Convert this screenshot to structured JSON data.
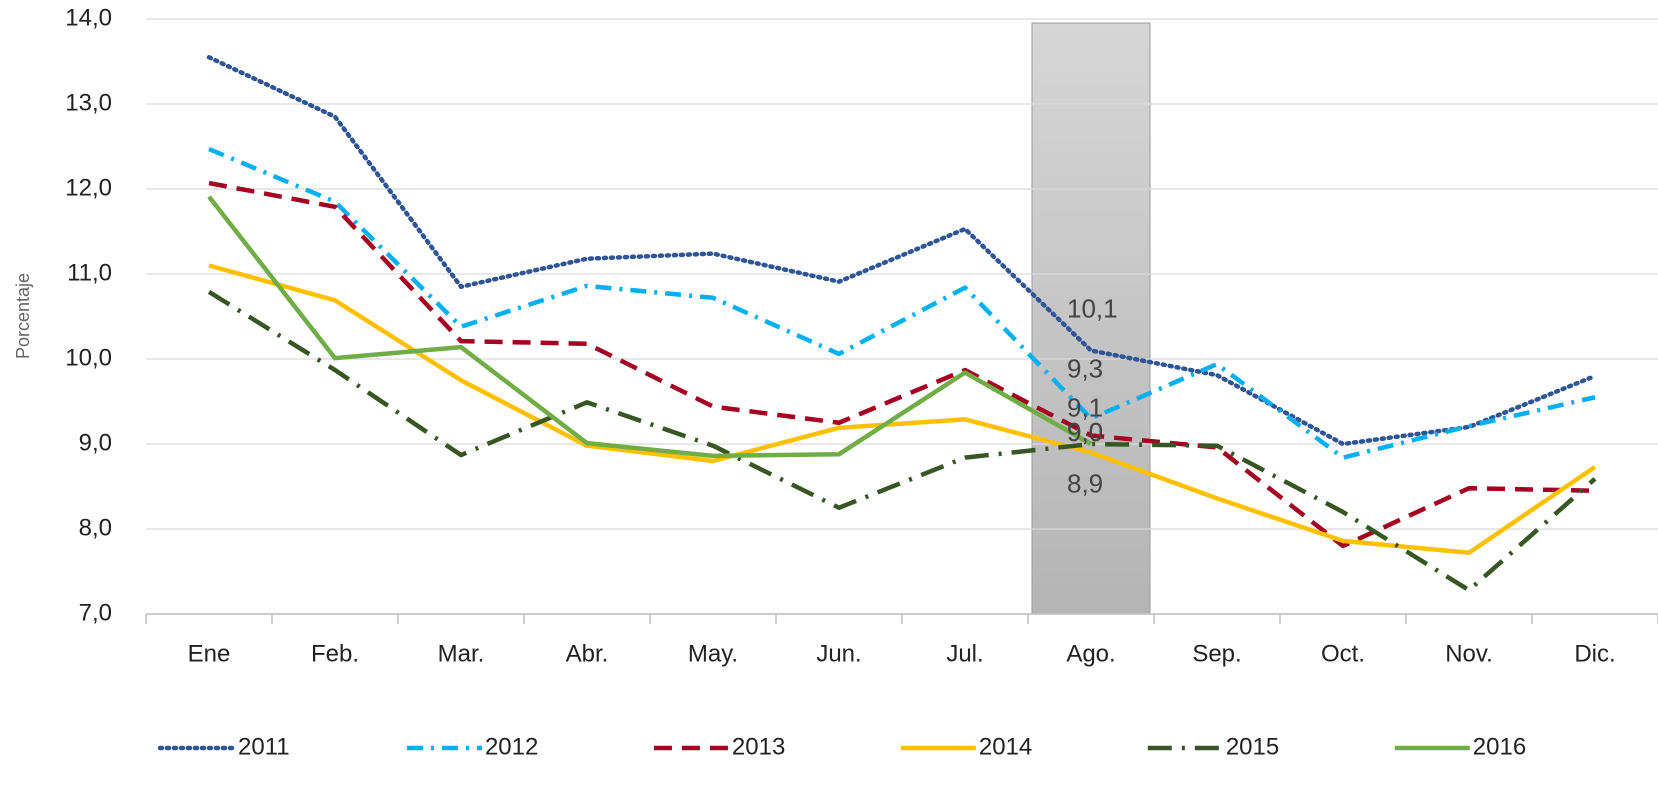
{
  "chart_data": {
    "type": "line",
    "y_label": "Porcentaje",
    "categories": [
      "Ene",
      "Feb.",
      "Mar.",
      "Abr.",
      "May.",
      "Jun.",
      "Jul.",
      "Ago.",
      "Sep.",
      "Oct.",
      "Nov.",
      "Dic."
    ],
    "ylim": [
      7,
      14
    ],
    "yticks": [
      {
        "value": 7,
        "label": "7,0"
      },
      {
        "value": 8,
        "label": "8,0"
      },
      {
        "value": 9,
        "label": "9,0"
      },
      {
        "value": 10,
        "label": "10,0"
      },
      {
        "value": 11,
        "label": "11,0"
      },
      {
        "value": 12,
        "label": "12,0"
      },
      {
        "value": 13,
        "label": "13,0"
      },
      {
        "value": 14,
        "label": "14,0"
      }
    ],
    "grid": true,
    "legend": "bottom",
    "series": [
      {
        "name": "2011",
        "color": "#2F5597",
        "style": "dotted",
        "values": [
          13.55,
          12.85,
          10.85,
          11.18,
          11.24,
          10.91,
          11.53,
          10.1,
          9.81,
          9.0,
          9.2,
          9.8
        ],
        "value_labels": [
          null,
          null,
          null,
          null,
          null,
          null,
          null,
          "10,1",
          null,
          null,
          null,
          null
        ]
      },
      {
        "name": "2012",
        "color": "#00B0F0",
        "style": "dashdot",
        "values": [
          12.47,
          11.85,
          10.38,
          10.86,
          10.72,
          10.06,
          10.84,
          9.3,
          9.94,
          8.84,
          9.21,
          9.55
        ],
        "value_labels": [
          null,
          null,
          null,
          null,
          null,
          null,
          null,
          "9,3",
          null,
          null,
          null,
          null
        ]
      },
      {
        "name": "2013",
        "color": "#A50021",
        "style": "dashed",
        "values": [
          12.07,
          11.79,
          10.21,
          10.18,
          9.44,
          9.25,
          9.87,
          9.1,
          8.96,
          7.8,
          8.48,
          8.45
        ],
        "value_labels": [
          null,
          null,
          null,
          null,
          null,
          null,
          null,
          "9,1",
          null,
          null,
          null,
          null
        ]
      },
      {
        "name": "2014",
        "color": "#FFC000",
        "style": "solid",
        "values": [
          11.1,
          10.69,
          9.75,
          8.98,
          8.8,
          9.19,
          9.29,
          8.9,
          8.36,
          7.86,
          7.72,
          8.73
        ],
        "value_labels": [
          null,
          null,
          null,
          null,
          null,
          null,
          null,
          "8,9",
          null,
          null,
          null,
          null
        ]
      },
      {
        "name": "2015",
        "color": "#375623",
        "style": "longdashdot",
        "values": [
          10.79,
          9.87,
          8.87,
          9.49,
          8.98,
          8.25,
          8.84,
          9.0,
          8.98,
          8.2,
          7.28,
          8.59
        ],
        "value_labels": [
          null,
          null,
          null,
          null,
          null,
          null,
          null,
          "9,0",
          null,
          null,
          null,
          null
        ]
      },
      {
        "name": "2016",
        "color": "#70AD47",
        "style": "solid",
        "values": [
          11.91,
          10.01,
          10.14,
          9.01,
          8.86,
          8.88,
          9.84,
          9.0,
          null,
          null,
          null,
          null
        ],
        "value_labels": [
          null,
          null,
          null,
          null,
          null,
          null,
          null,
          "9,0",
          null,
          null,
          null,
          null
        ]
      }
    ]
  }
}
